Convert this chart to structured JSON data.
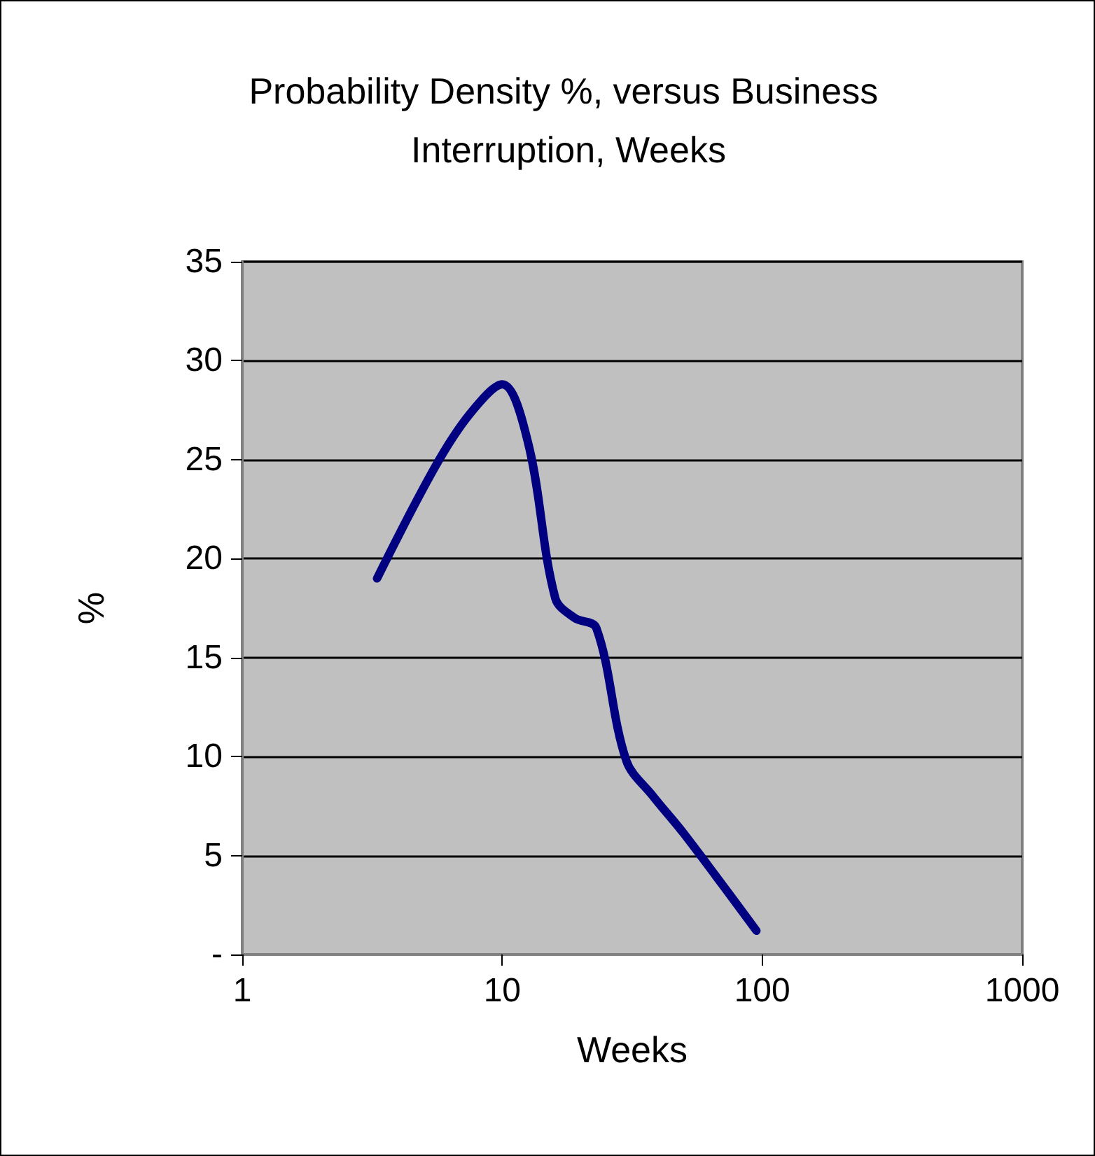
{
  "chart_data": {
    "type": "line",
    "title": "Probability Density %, versus Business Interruption, Weeks",
    "xlabel": "Weeks",
    "ylabel": "%",
    "log": "x",
    "xlim": [
      1,
      1000
    ],
    "xticks": [
      1,
      10,
      100,
      1000
    ],
    "ylim": [
      0,
      35
    ],
    "yticks": [
      {
        "value": 0,
        "label": "-"
      },
      5,
      10,
      15,
      20,
      25,
      30,
      35
    ],
    "grid": "y",
    "marker": "none",
    "line_style": "solid",
    "series": [
      {
        "color": "#000080",
        "x": [
          3.3,
          5.5,
          7.5,
          10,
          12.6,
          16,
          19,
          23,
          30,
          38,
          50,
          95
        ],
        "values": [
          19,
          24.6,
          27.3,
          28.8,
          25.8,
          18,
          17,
          16.5,
          9.8,
          8,
          6.1,
          1.2
        ]
      }
    ]
  }
}
